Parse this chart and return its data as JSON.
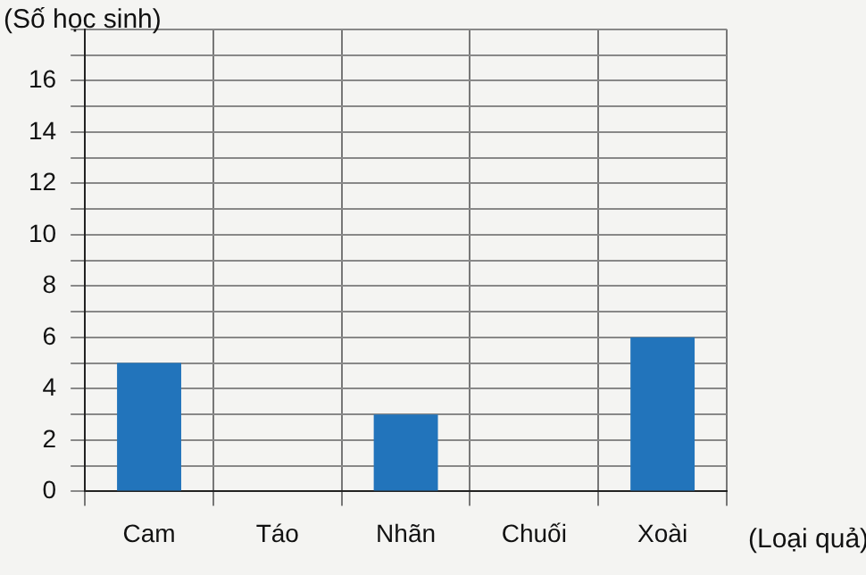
{
  "chart_data": {
    "type": "bar",
    "ylabel": "(Số học sinh)",
    "xlabel": "(Loại quả)",
    "categories": [
      "Cam",
      "Táo",
      "Nhãn",
      "Chuối",
      "Xoài"
    ],
    "values": [
      5,
      0,
      3,
      0,
      6
    ],
    "color": "#2274bb",
    "ylim": [
      0,
      18
    ],
    "yticks": [
      0,
      {
        "value": 1,
        "label": null
      },
      2,
      {
        "value": 3,
        "label": null
      },
      4,
      {
        "value": 5,
        "label": null
      },
      6,
      {
        "value": 7,
        "label": null
      },
      8,
      {
        "value": 9,
        "label": null
      },
      10,
      {
        "value": 11,
        "label": null
      },
      12,
      {
        "value": 13,
        "label": null
      },
      14,
      {
        "value": 15,
        "label": null
      },
      16,
      {
        "value": 17,
        "label": null
      },
      {
        "value": 18,
        "label": null
      }
    ],
    "grid": true,
    "legend": false
  }
}
